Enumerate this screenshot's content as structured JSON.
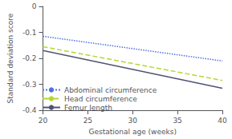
{
  "chart_data": {
    "type": "line",
    "x": [
      20,
      40
    ],
    "series": [
      {
        "name": "Abdominal circumference",
        "values": [
          -0.115,
          -0.21
        ],
        "line_style": "dotted"
      },
      {
        "name": "Head circumference",
        "values": [
          -0.155,
          -0.285
        ],
        "line_style": "dashed"
      },
      {
        "name": "Femur length",
        "values": [
          -0.17,
          -0.315
        ],
        "line_style": "solid"
      }
    ],
    "xlabel": "Gestational age (weeks)",
    "ylabel": "Standard deviation score",
    "xlim": [
      20,
      40
    ],
    "ylim": [
      -0.4,
      0.0
    ],
    "xticks": [
      20,
      25,
      30,
      35,
      40
    ],
    "yticks": [
      0.0,
      -0.1,
      -0.2,
      -0.3,
      -0.4
    ],
    "grid": false,
    "legend": "lower left"
  }
}
